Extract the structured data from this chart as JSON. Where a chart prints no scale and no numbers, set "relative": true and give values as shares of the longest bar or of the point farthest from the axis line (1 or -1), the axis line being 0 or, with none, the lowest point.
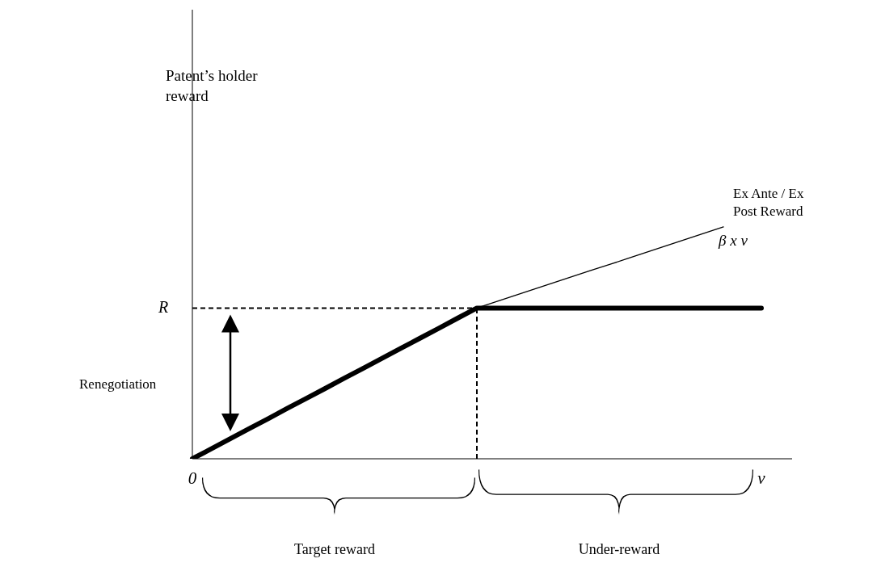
{
  "chart_data": {
    "type": "line",
    "relative": true,
    "line_style": "solid",
    "categories": [
      "0",
      null,
      null,
      null,
      null,
      null,
      null,
      null,
      null,
      null,
      null,
      null,
      null,
      null,
      null,
      null,
      null,
      null,
      null,
      null,
      null,
      null,
      null,
      null,
      null,
      null,
      null,
      null,
      null,
      null,
      "v"
    ],
    "series": [
      {
        "name": "Ex Ante / Ex Post Reward",
        "color": "#000000",
        "values": [
          null,
          null,
          null,
          null,
          null,
          null,
          null,
          null,
          null,
          null,
          null,
          null,
          null,
          null,
          null,
          0.65,
          0.677,
          0.704,
          0.731,
          0.758,
          0.785,
          0.812,
          0.838,
          0.865,
          0.892,
          0.919,
          0.946,
          0.973,
          1.0,
          null,
          null
        ]
      },
      {
        "color": "#000000",
        "values": [
          0,
          0.043,
          0.087,
          0.13,
          0.173,
          0.217,
          0.26,
          0.303,
          0.347,
          0.39,
          0.433,
          0.477,
          0.52,
          0.563,
          0.607,
          0.65,
          0.65,
          0.65,
          0.65,
          0.65,
          0.65,
          0.65,
          0.65,
          0.65,
          0.65,
          0.65,
          0.65,
          0.65,
          0.65,
          0.65,
          0.65
        ]
      }
    ],
    "ref_lines": [
      {
        "axis": "y",
        "value": 0.65,
        "label": "R",
        "line_style": "dashed"
      }
    ],
    "annotations": [
      "Patent’s holder reward",
      "Renegotiation",
      "Target reward",
      "Under-reward",
      "β x v"
    ]
  }
}
